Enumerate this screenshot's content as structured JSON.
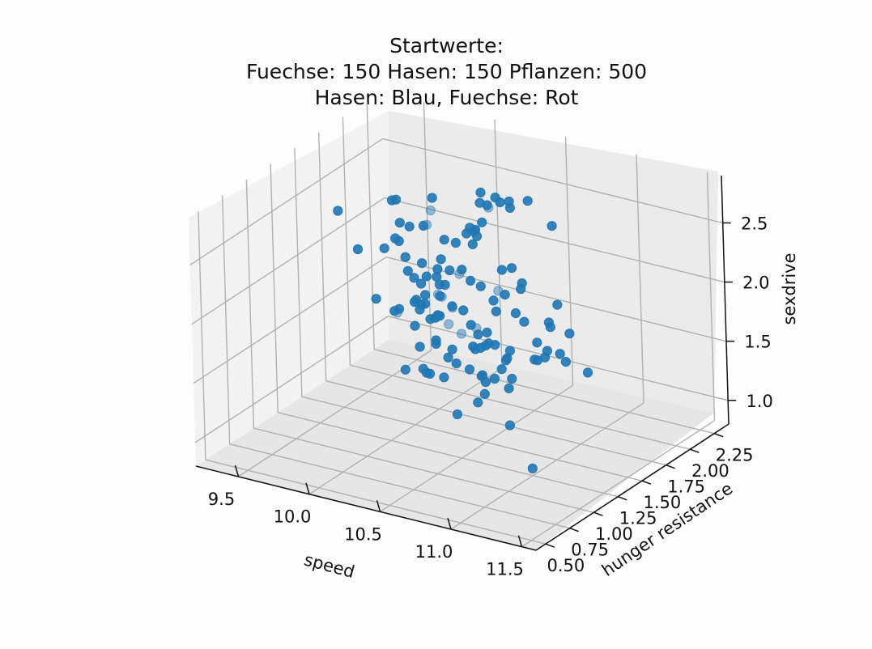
{
  "chart_data": {
    "type": "scatter",
    "projection": "3d",
    "title_lines": [
      "Startwerte:",
      "Fuechse: 150 Hasen: 150 Pflanzen: 500",
      "Hasen: Blau, Fuechse: Rot"
    ],
    "xlabel": "speed",
    "ylabel": "hunger resistance",
    "zlabel": "sexdrive",
    "x_ticks": [
      "9.5",
      "10.0",
      "10.5",
      "11.0",
      "11.5"
    ],
    "y_ticks": [
      "0.50",
      "0.75",
      "1.00",
      "1.25",
      "1.50",
      "1.75",
      "2.00",
      "2.25"
    ],
    "z_ticks": [
      "1.0",
      "1.5",
      "2.0",
      "2.5"
    ],
    "xlim": [
      9.2,
      11.6
    ],
    "ylim": [
      0.4,
      2.4
    ],
    "zlim": [
      0.8,
      2.9
    ],
    "grid": true,
    "marker_color": "#1f77b4",
    "series": [
      {
        "x": [
          10.21,
          10.31,
          9.93,
          10.06,
          10.31,
          10.44,
          10.68,
          10.19,
          9.89,
          9.56,
          9.79,
          11.07,
          10.96,
          10.95,
          11.16,
          10.93,
          10.25,
          10.17,
          10.35,
          10.52,
          10.44,
          10.76,
          10.41,
          10.04,
          10.11,
          10.76,
          10.93,
          10.73,
          10.6,
          10.96,
          10.39,
          10.68,
          9.97,
          10.26,
          10.33,
          9.79,
          10.13,
          10.5,
          10.48,
          10.9,
          10.91,
          10.14,
          10.5,
          9.81,
          10.69,
          10.41,
          10.78,
          10.44,
          10.36,
          10.98,
          10.63,
          10.49,
          10.44,
          9.93,
          10.19,
          9.92,
          10.82,
          10.48,
          10.46,
          10.32,
          10.71,
          10.82,
          10.23,
          10.46,
          10.33,
          10.43,
          10.86,
          10.71,
          10.05,
          10.45,
          10.21,
          9.91,
          10.6,
          10.66,
          10.29,
          9.83,
          10.21,
          10.6,
          10.82,
          10.33,
          10.6,
          10.44,
          9.84,
          10.16,
          9.93,
          10.21,
          9.91,
          10.88,
          10.21,
          9.89,
          10.3,
          9.88,
          10.29,
          11.01,
          10.23,
          10.16,
          10.26,
          10.04,
          10.55,
          9.92,
          10.59,
          10.6,
          10.44,
          10.62,
          10.96,
          10.85,
          10.72,
          10.4,
          10.64,
          10.33,
          10.49,
          10.59,
          10.14,
          10.2,
          10.6,
          10.02,
          10.28,
          10.25,
          10.02,
          10.31,
          10.68,
          10.6,
          10.43,
          10.66,
          10.66,
          10.36,
          10.3,
          10.03,
          10.73,
          10.39
        ],
        "y": [
          1.47,
          1.55,
          1.82,
          1.59,
          1.94,
          1.68,
          1.14,
          1.88,
          1.51,
          1.77,
          1.83,
          1.74,
          1.36,
          1.53,
          1.02,
          1.72,
          1.78,
          1.53,
          1.1,
          1.17,
          1.24,
          1.54,
          1.35,
          1.68,
          1.84,
          1.34,
          1.65,
          1.86,
          1.16,
          1.24,
          1.25,
          0.87,
          1.59,
          1.16,
          1.31,
          1.94,
          1.34,
          1.25,
          1.71,
          1.24,
          1.03,
          1.37,
          0.92,
          1.51,
          1.09,
          1.51,
          1.07,
          1.16,
          1.22,
          1.04,
          1.55,
          1.06,
          1.28,
          1.55,
          1.36,
          0.89,
          1.59,
          1.67,
          1.13,
          1.14,
          1.2,
          0.96,
          1.17,
          0.73,
          0.93,
          1.0,
          0.7,
          0.79,
          1.57,
          1.82,
          1.46,
          1.48,
          1.04,
          1.82,
          1.25,
          1.66,
          1.07,
          1.57,
          1.29,
          1.85,
          1.21,
          1.89,
          1.81,
          1.94,
          1.7,
          1.55,
          1.6,
          1.69,
          1.97,
          1.48,
          2.21,
          1.14,
          2.04,
          1.04,
          1.87,
          1.51,
          1.74,
          1.68,
          1.71,
          1.8,
          1.3,
          1.33,
          2.21,
          1.32,
          1.62,
          1.88,
          1.68,
          1.58,
          1.38,
          1.75,
          1.68,
          1.26,
          1.17,
          1.88,
          1.67,
          1.3,
          1.41,
          1.9,
          1.63,
          1.79,
          1.21,
          1.38,
          1.28,
          1.61,
          1.39,
          1.34,
          1.8,
          1.98,
          1.82,
          1.68
        ],
        "z": [
          1.98,
          2.14,
          2.42,
          2.46,
          1.79,
          2.67,
          2.86,
          1.47,
          1.71,
          1.59,
          1.6,
          1.43,
          1.71,
          1.93,
          1.03,
          1.49,
          2.25,
          2.15,
          2.31,
          2.12,
          1.92,
          2.2,
          1.52,
          1.62,
          1.42,
          2.42,
          2.01,
          1.65,
          2.47,
          2.37,
          2.13,
          2.52,
          1.8,
          2.3,
          1.92,
          1.6,
          1.76,
          2.62,
          1.3,
          2.53,
          2.37,
          1.57,
          2.28,
          2.23,
          2.84,
          1.76,
          1.91,
          2.2,
          1.74,
          1.88,
          2.06,
          2.43,
          2.05,
          2.17,
          1.37,
          2.91,
          1.69,
          1.81,
          2.32,
          1.56,
          1.43,
          1.97,
          2.72,
          2.9,
          2.91,
          2.56,
          1.57,
          1.79,
          2.46,
          1.07,
          1.81,
          2.36,
          1.86,
          1.37,
          1.45,
          1.13,
          2.07,
          2.82,
          1.15,
          1.1,
          1.6,
          2.61,
          1.56,
          2.26,
          1.69,
          2.4,
          2.02,
          2.64,
          1.3,
          1.74,
          1.38,
          2.44,
          1.16,
          1.97,
          1.09,
          2.76,
          1.41,
          1.43,
          1.24,
          1.51,
          1.27,
          1.48,
          1.12,
          2.25,
          1.62,
          1.62,
          2.81,
          2.51,
          2.91,
          2.64,
          2.77,
          2.32,
          2.92,
          1.42,
          2.72,
          2.81,
          2.33,
          1.44,
          1.99,
          2.7,
          2.75,
          1.71,
          2.35,
          1.88,
          1.73,
          1.56,
          1.09,
          1.52,
          1.47,
          2.53
        ],
        "depth_shaded": [
          true,
          true,
          true,
          true,
          true,
          true,
          false,
          true,
          true,
          false,
          false,
          false,
          false,
          false,
          false,
          false,
          false,
          false,
          false,
          true,
          true,
          false,
          false,
          false,
          true,
          false,
          false,
          false,
          false,
          false,
          true,
          false,
          false,
          false,
          false,
          false,
          false,
          false,
          false,
          false,
          false,
          false,
          false,
          false,
          false,
          false,
          false,
          false,
          false,
          false,
          false,
          false,
          false,
          false,
          false,
          false,
          false,
          false,
          false,
          false,
          false,
          false,
          false,
          false,
          false,
          false,
          false,
          false,
          false,
          false,
          false,
          false,
          false,
          false,
          false,
          false,
          false,
          false,
          false,
          false,
          false,
          false,
          false,
          false,
          false,
          false,
          false,
          false,
          false,
          false,
          false,
          false,
          false,
          false,
          false,
          false,
          false,
          false,
          false,
          false,
          false,
          false,
          false,
          false,
          false,
          false,
          false,
          false,
          false,
          false,
          false,
          false,
          false,
          false,
          false,
          false,
          false,
          false,
          false,
          false,
          false,
          false,
          false,
          false,
          false,
          false,
          false,
          false,
          false,
          false
        ]
      }
    ]
  }
}
